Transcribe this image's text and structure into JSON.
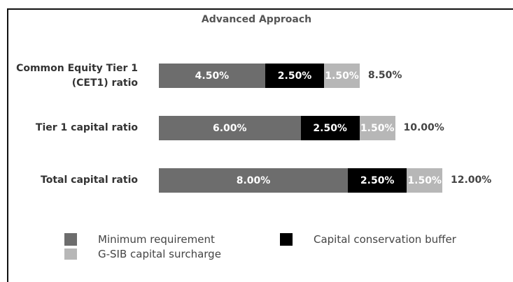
{
  "chart_data": {
    "type": "bar",
    "orientation": "horizontal",
    "stacked": true,
    "title": "Advanced Approach",
    "categories": [
      "Common Equity Tier 1 (CET1) ratio",
      "Tier 1 capital ratio",
      "Total capital ratio"
    ],
    "category_lines": [
      [
        "Common Equity Tier 1",
        "(CET1) ratio"
      ],
      [
        "Tier 1 capital ratio"
      ],
      [
        "Total capital ratio"
      ]
    ],
    "series": [
      {
        "name": "Minimum requirement",
        "values": [
          4.5,
          6.0,
          8.0
        ],
        "labels": [
          "4.50%",
          "6.00%",
          "8.00%"
        ],
        "color": "#6d6d6d",
        "text_color": "#ffffff"
      },
      {
        "name": "Capital conservation buffer",
        "values": [
          2.5,
          2.5,
          2.5
        ],
        "labels": [
          "2.50%",
          "2.50%",
          "2.50%"
        ],
        "color": "#000000",
        "text_color": "#ffffff"
      },
      {
        "name": "G-SIB capital surcharge",
        "values": [
          1.5,
          1.5,
          1.5
        ],
        "labels": [
          "1.50%",
          "1.50%",
          "1.50%"
        ],
        "color": "#b7b7b7",
        "text_color": "#ffffff"
      }
    ],
    "totals": [
      8.5,
      10.0,
      12.0
    ],
    "total_labels": [
      "8.50%",
      "10.00%",
      "12.00%"
    ],
    "legend_position": "bottom",
    "grid": false
  }
}
